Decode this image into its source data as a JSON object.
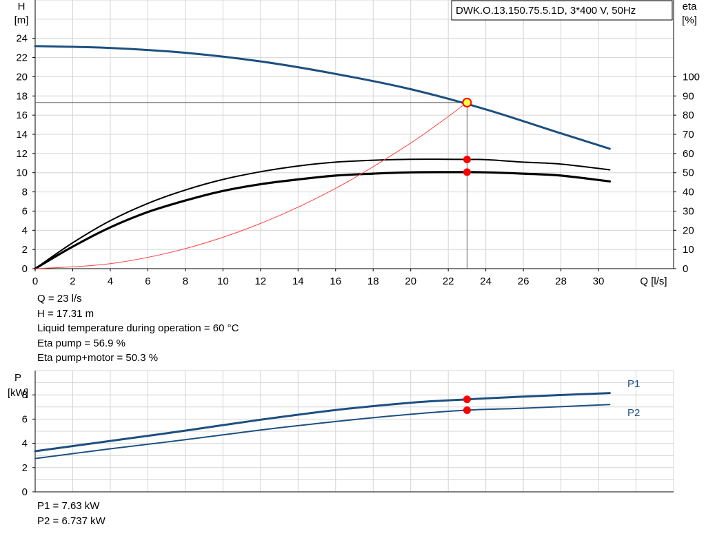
{
  "chart_data": [
    {
      "type": "line",
      "title": "DWK.O.13.150.75.5.1D, 3*400 V, 50Hz",
      "xlabel": "Q [l/s]",
      "ylabel_left": [
        "H",
        "[m]"
      ],
      "ylabel_right": [
        "eta",
        "[%]"
      ],
      "xlim": [
        0,
        34
      ],
      "ylim_left": [
        0,
        28
      ],
      "ylim_right": [
        0,
        140
      ],
      "xticks": [
        0,
        2,
        4,
        6,
        8,
        10,
        12,
        14,
        16,
        18,
        20,
        22,
        24,
        26,
        28,
        30
      ],
      "yticks_left": [
        0,
        2,
        4,
        6,
        8,
        10,
        12,
        14,
        16,
        18,
        20,
        22,
        24
      ],
      "yticks_right": [
        0,
        10,
        20,
        30,
        40,
        50,
        60,
        70,
        80,
        90,
        100
      ],
      "grid": true,
      "series": [
        {
          "key": "head",
          "axis": "left",
          "color": "#1c4f80",
          "x": [
            0,
            4,
            8,
            12,
            16,
            20,
            24,
            28,
            30.6
          ],
          "y": [
            23.2,
            23.0,
            22.5,
            21.6,
            20.3,
            18.7,
            16.6,
            14.1,
            12.5
          ]
        },
        {
          "key": "eta_pump",
          "axis": "right",
          "color": "#000000",
          "x": [
            0,
            2,
            4,
            6,
            8,
            10,
            12,
            14,
            16,
            18,
            20,
            22,
            23,
            24,
            26,
            28,
            30.6
          ],
          "y": [
            0,
            13.5,
            25,
            34,
            41,
            46.5,
            50.5,
            53.5,
            55.5,
            56.5,
            57,
            57,
            56.9,
            56.8,
            55.5,
            54.5,
            51.5
          ]
        },
        {
          "key": "eta_pump_motor",
          "axis": "right",
          "color": "#000000",
          "x": [
            0,
            2,
            4,
            6,
            8,
            10,
            12,
            14,
            16,
            18,
            20,
            22,
            23,
            24,
            26,
            28,
            30.6
          ],
          "y": [
            0,
            11.5,
            21.5,
            29.5,
            35.5,
            40.5,
            44,
            46.5,
            48.5,
            49.5,
            50.2,
            50.3,
            50.3,
            50.2,
            49.5,
            48.5,
            45.5
          ]
        },
        {
          "key": "system_curve",
          "axis": "left",
          "color": "#ff4040",
          "x": [
            0,
            4,
            8,
            12,
            16,
            20,
            23
          ],
          "y": [
            0,
            0.52,
            2.09,
            4.71,
            8.37,
            13.09,
            17.31
          ]
        }
      ],
      "operating_point": {
        "Q": 23,
        "H": 17.31,
        "eta_pump": 56.9,
        "eta_pump_motor": 50.3
      }
    },
    {
      "type": "line",
      "xlabel": "",
      "ylabel": [
        "P",
        "[kW]"
      ],
      "xlim": [
        0,
        34
      ],
      "ylim": [
        0,
        10
      ],
      "yticks": [
        0,
        2,
        4,
        6,
        8
      ],
      "grid": true,
      "series": [
        {
          "name": "P1",
          "color": "#1c4f80",
          "x": [
            0,
            4,
            8,
            12,
            16,
            20,
            23,
            26,
            30.6
          ],
          "y": [
            3.35,
            4.2,
            5.05,
            5.95,
            6.75,
            7.35,
            7.63,
            7.85,
            8.15
          ]
        },
        {
          "name": "P2",
          "color": "#1c4f80",
          "x": [
            0,
            4,
            8,
            12,
            16,
            20,
            23,
            26,
            30.6
          ],
          "y": [
            2.75,
            3.55,
            4.3,
            5.1,
            5.8,
            6.4,
            6.737,
            6.9,
            7.2
          ]
        }
      ],
      "operating_point": {
        "Q": 23,
        "P1": 7.63,
        "P2": 6.737
      }
    }
  ],
  "readout_top": [
    "Q = 23 l/s",
    "H = 17.31 m",
    "Liquid temperature during operation = 60 °C",
    "Eta pump = 56.9 %",
    "Eta pump+motor = 50.3 %"
  ],
  "readout_bottom": [
    "P1 = 7.63 kW",
    "P2 = 6.737 kW"
  ],
  "colors": {
    "grid": "#d4d4d4",
    "axis": "#000000",
    "pump_curve": "#1c4f80",
    "eta_curves": "#000000",
    "system_curve": "#ff4040",
    "op_marker": "#ff0000",
    "op_highlight": "#ffff40"
  }
}
